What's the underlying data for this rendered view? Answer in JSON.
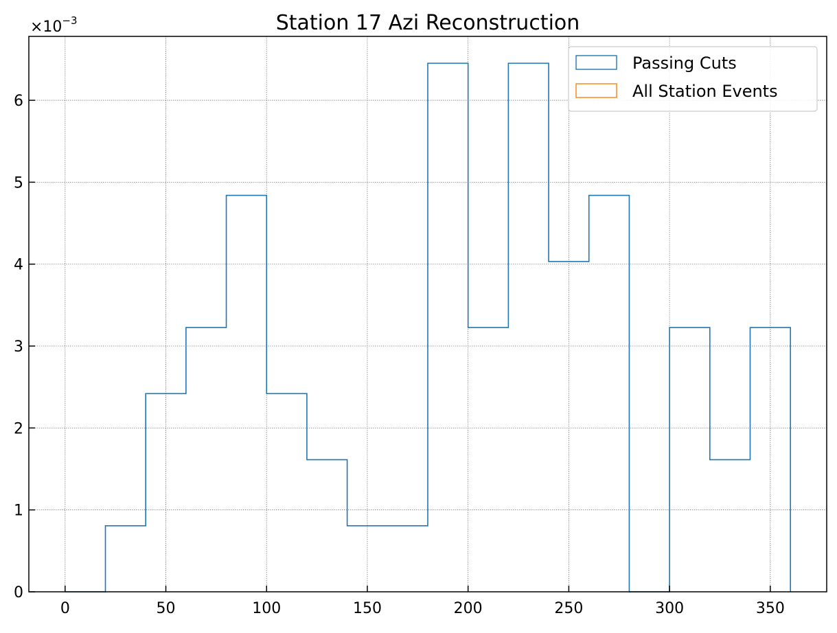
{
  "chart_data": {
    "type": "histogram",
    "title": "Station 17 Azi Reconstruction",
    "xlabel": "",
    "ylabel": "",
    "y_multiplier": "×10",
    "y_multiplier_exponent": "−3",
    "xlim": [
      -18,
      378
    ],
    "ylim": [
      0,
      6.78
    ],
    "y_unit_scale": 0.001,
    "xticks": [
      0,
      50,
      100,
      150,
      200,
      250,
      300,
      350
    ],
    "yticks": [
      0,
      1,
      2,
      3,
      4,
      5,
      6
    ],
    "grid": true,
    "legend_position": "top-right",
    "bin_edges": [
      0,
      20,
      40,
      60,
      80,
      100,
      120,
      140,
      160,
      180,
      200,
      220,
      240,
      260,
      280,
      300,
      320,
      340,
      360
    ],
    "series": [
      {
        "name": "Passing Cuts",
        "color": "#1f77b4",
        "values": [
          0,
          0.806,
          2.419,
          3.226,
          4.839,
          2.419,
          1.613,
          0.806,
          0.806,
          6.452,
          3.226,
          6.452,
          4.032,
          4.839,
          0,
          3.226,
          1.613,
          3.226
        ]
      },
      {
        "name": "All Station Events",
        "color": "#ff7f0e",
        "values": []
      }
    ]
  }
}
